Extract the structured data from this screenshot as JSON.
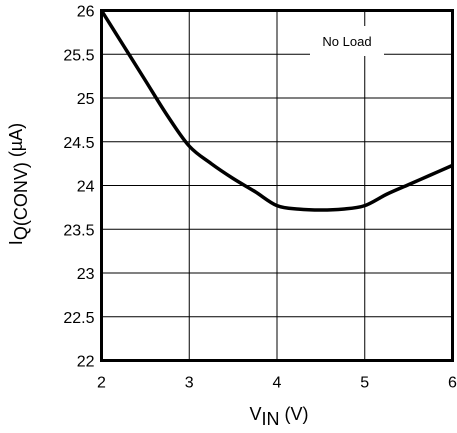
{
  "chart_data": {
    "type": "line",
    "title": "",
    "xlabel": {
      "main": "V",
      "sub": "IN",
      "unit": " (V)"
    },
    "ylabel": {
      "main": "I",
      "sub": "Q(CONV)",
      "unit": " (µA)"
    },
    "xlim": [
      2,
      6
    ],
    "ylim": [
      22,
      26
    ],
    "x_ticks": [
      "2",
      "3",
      "4",
      "5",
      "6"
    ],
    "y_ticks": [
      "22",
      "22.5",
      "23",
      "23.5",
      "24",
      "24.5",
      "25",
      "25.5",
      "26"
    ],
    "grid": true,
    "annotation": "No Load",
    "series": [
      {
        "x": [
          2.0,
          2.25,
          2.5,
          2.75,
          3.0,
          3.25,
          3.5,
          3.75,
          4.0,
          4.25,
          4.5,
          4.75,
          5.0,
          5.25,
          5.5,
          5.75,
          6.0
        ],
        "y": [
          26.0,
          25.6,
          25.2,
          24.8,
          24.45,
          24.25,
          24.08,
          23.93,
          23.77,
          23.73,
          23.72,
          23.73,
          23.77,
          23.9,
          24.01,
          24.12,
          24.23
        ],
        "color": "#000000"
      }
    ]
  }
}
